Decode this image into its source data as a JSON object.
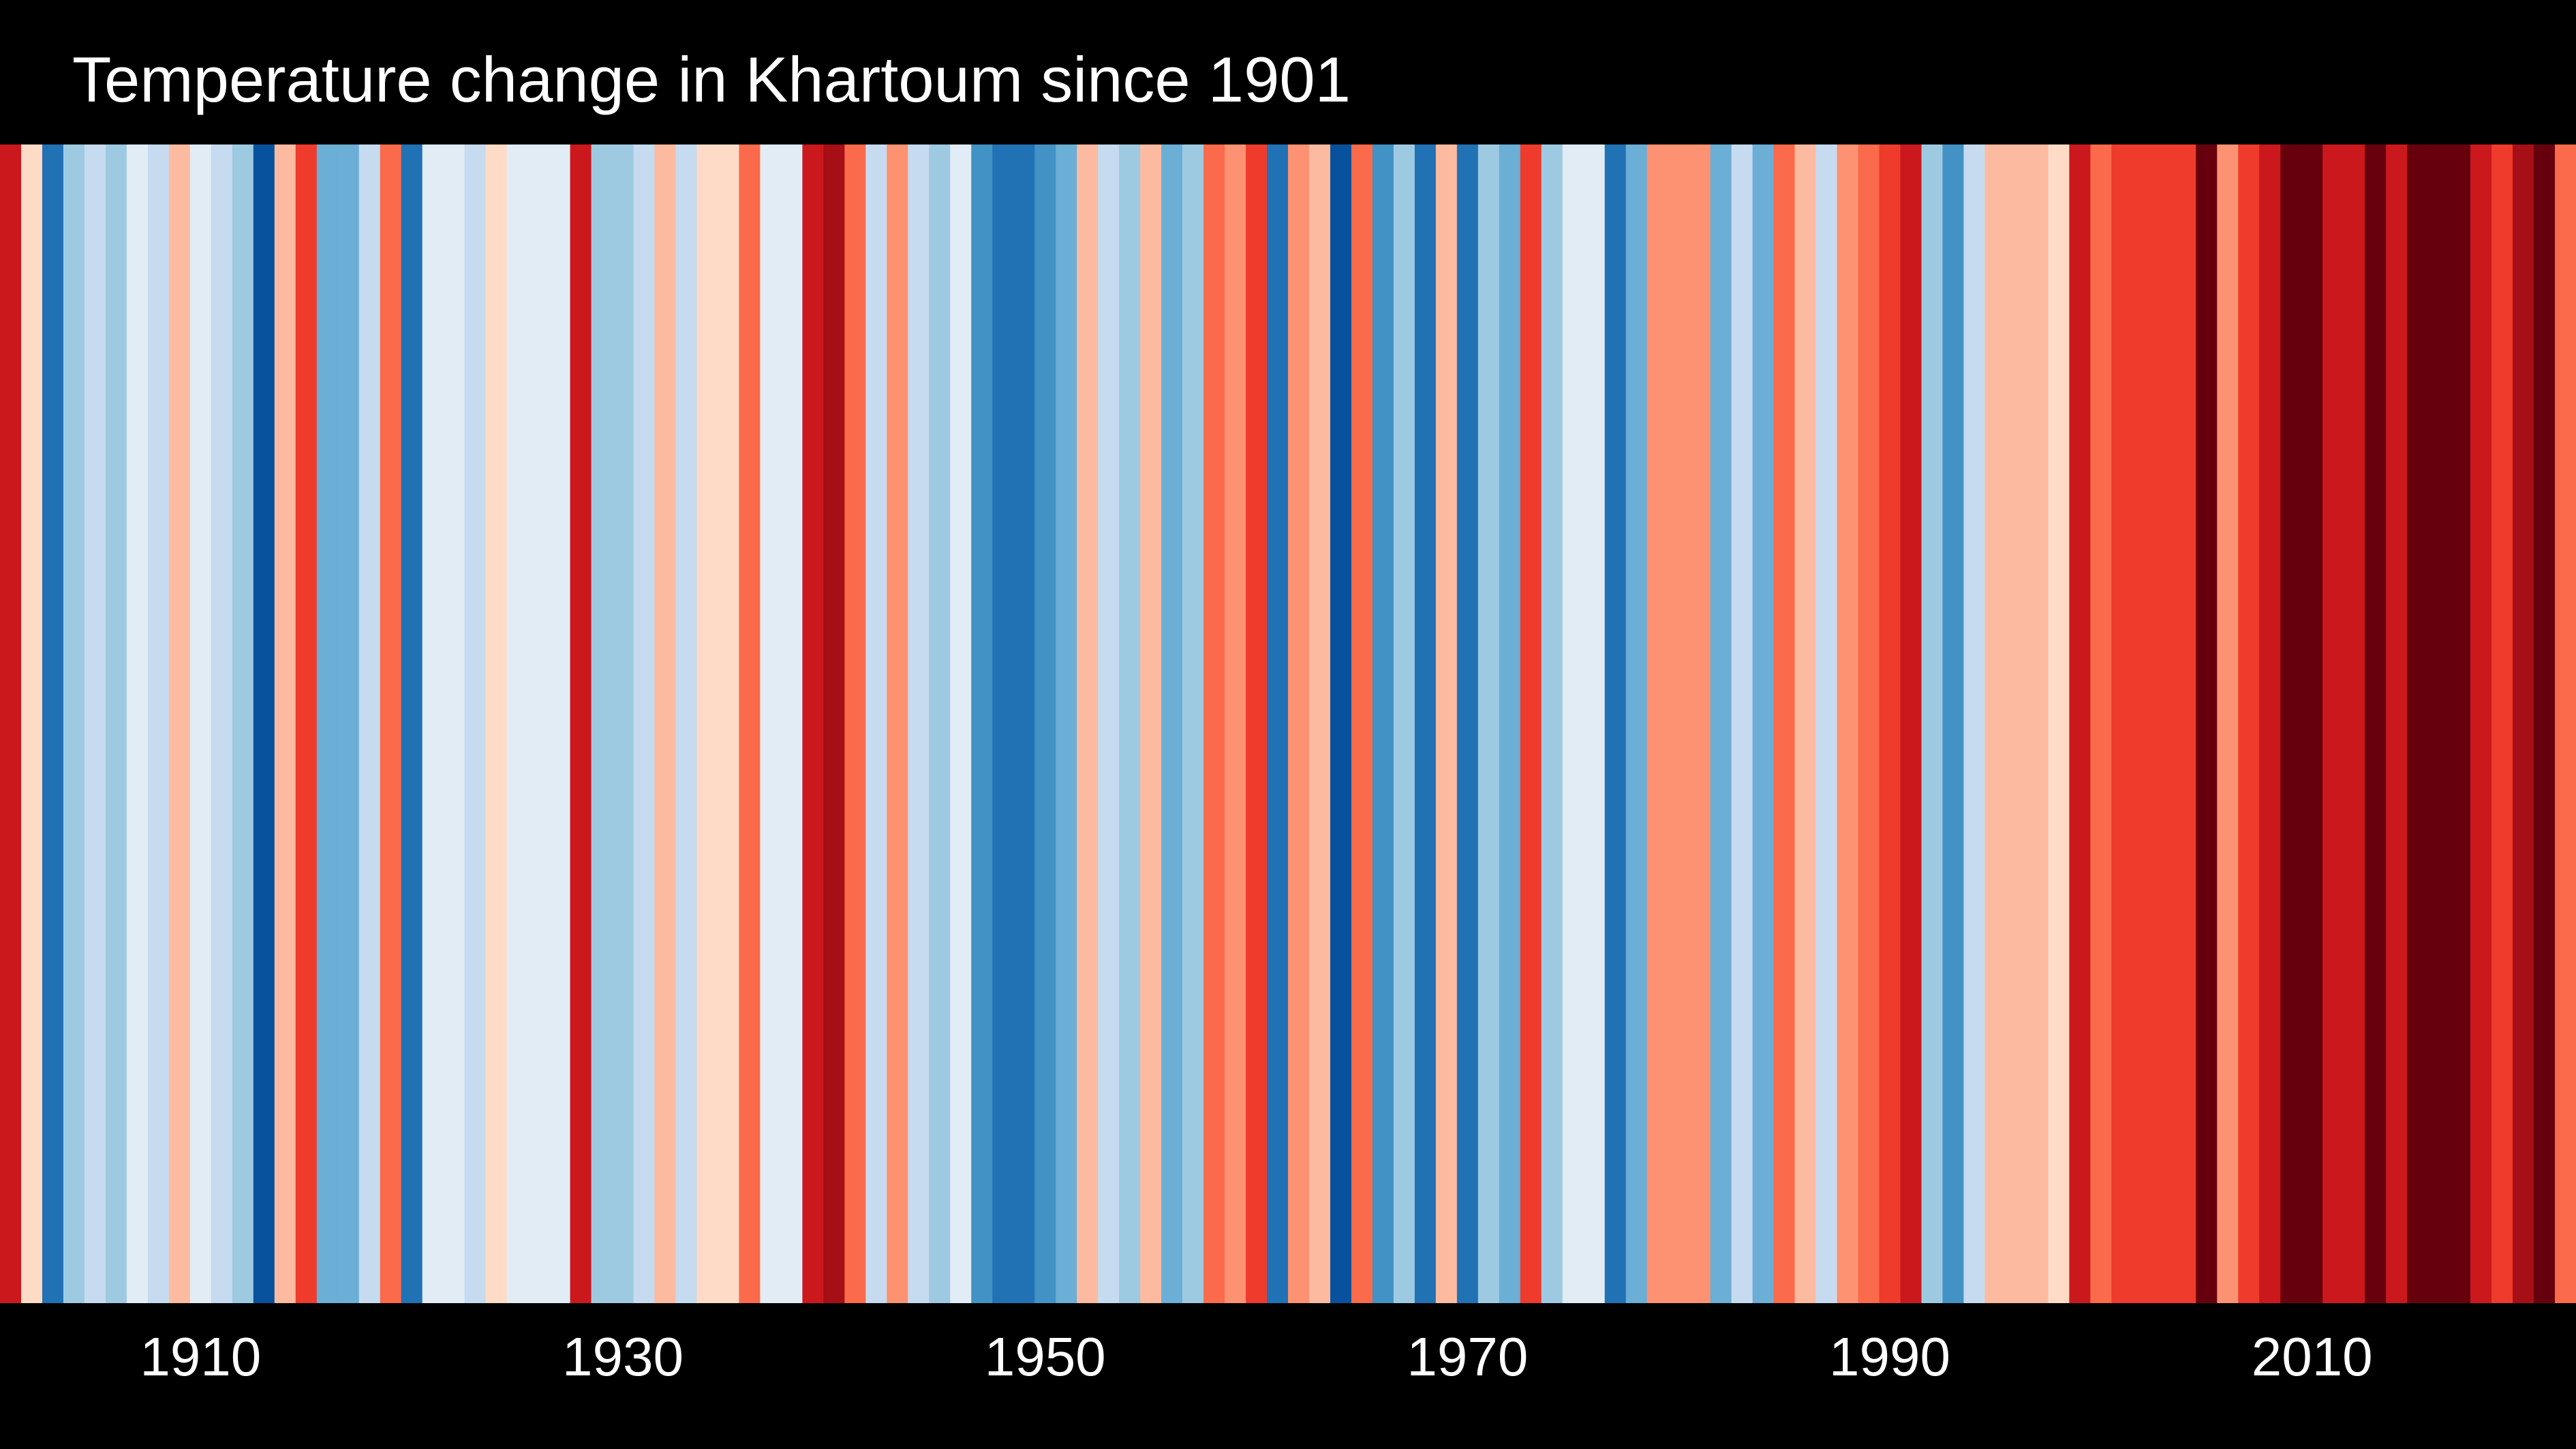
{
  "chart_data": {
    "type": "heatmap",
    "title": "Temperature change in Khartoum since 1901",
    "x": [
      1901,
      1902,
      1903,
      1904,
      1905,
      1906,
      1907,
      1908,
      1909,
      1910,
      1911,
      1912,
      1913,
      1914,
      1915,
      1916,
      1917,
      1918,
      1919,
      1920,
      1921,
      1922,
      1923,
      1924,
      1925,
      1926,
      1927,
      1928,
      1929,
      1930,
      1931,
      1932,
      1933,
      1934,
      1935,
      1936,
      1937,
      1938,
      1939,
      1940,
      1941,
      1942,
      1943,
      1944,
      1945,
      1946,
      1947,
      1948,
      1949,
      1950,
      1951,
      1952,
      1953,
      1954,
      1955,
      1956,
      1957,
      1958,
      1959,
      1960,
      1961,
      1962,
      1963,
      1964,
      1965,
      1966,
      1967,
      1968,
      1969,
      1970,
      1971,
      1972,
      1973,
      1974,
      1975,
      1976,
      1977,
      1978,
      1979,
      1980,
      1981,
      1982,
      1983,
      1984,
      1985,
      1986,
      1987,
      1988,
      1989,
      1990,
      1991,
      1992,
      1993,
      1994,
      1995,
      1996,
      1997,
      1998,
      1999,
      2000,
      2001,
      2002,
      2003,
      2004,
      2005,
      2006,
      2007,
      2008,
      2009,
      2010,
      2011,
      2012,
      2013,
      2014,
      2015,
      2016,
      2017,
      2018,
      2019,
      2020,
      2021,
      2022
    ],
    "colors": [
      "#cb181d",
      "#fddbc7",
      "#2171b5",
      "#9ecae1",
      "#c6dbef",
      "#9ecae1",
      "#e1ecf4",
      "#c6dbef",
      "#fcbba1",
      "#e1ecf4",
      "#c6dbef",
      "#9ecae1",
      "#08519c",
      "#fcbba1",
      "#ef3b2c",
      "#6baed6",
      "#6baed6",
      "#c6dbef",
      "#fb6a4a",
      "#2171b5",
      "#e1ecf4",
      "#e1ecf4",
      "#c6dbef",
      "#fddbc7",
      "#e1ecf4",
      "#e1ecf4",
      "#e1ecf4",
      "#cb181d",
      "#9ecae1",
      "#9ecae1",
      "#c6dbef",
      "#fcbba1",
      "#c6dbef",
      "#fddbc7",
      "#fddbc7",
      "#fb6a4a",
      "#e1ecf4",
      "#e1ecf4",
      "#cb181d",
      "#a50f15",
      "#fb6a4a",
      "#c6dbef",
      "#fc9272",
      "#c6dbef",
      "#9ecae1",
      "#e1ecf4",
      "#4292c6",
      "#2171b5",
      "#2171b5",
      "#4292c6",
      "#6baed6",
      "#fcbba1",
      "#c6dbef",
      "#9ecae1",
      "#fcbba1",
      "#6baed6",
      "#9ecae1",
      "#fb6a4a",
      "#fc9272",
      "#ef3b2c",
      "#2171b5",
      "#fc9272",
      "#fcbba1",
      "#08519c",
      "#fb6a4a",
      "#4292c6",
      "#9ecae1",
      "#2171b5",
      "#fcbba1",
      "#2171b5",
      "#9ecae1",
      "#6baed6",
      "#ef3b2c",
      "#9ecae1",
      "#e1ecf4",
      "#e1ecf4",
      "#2171b5",
      "#6baed6",
      "#fc9272",
      "#fc9272",
      "#fc9272",
      "#6baed6",
      "#c6dbef",
      "#6baed6",
      "#fb6a4a",
      "#fcbba1",
      "#c6dbef",
      "#fc9272",
      "#fb6a4a",
      "#ef3b2c",
      "#cb181d",
      "#9ecae1",
      "#4292c6",
      "#c6dbef",
      "#fcbba1",
      "#fcbba1",
      "#fcbba1",
      "#fddbc7",
      "#cb181d",
      "#fb6a4a",
      "#ef3b2c",
      "#ef3b2c",
      "#ef3b2c",
      "#ef3b2c",
      "#67000d",
      "#fc9272",
      "#ef3b2c",
      "#cb181d",
      "#67000d",
      "#67000d",
      "#cb181d",
      "#cb181d",
      "#67000d",
      "#cb181d",
      "#67000d",
      "#67000d",
      "#67000d",
      "#cb181d",
      "#ef3b2c",
      "#a50f15",
      "#67000d",
      "#fb6a4a"
    ],
    "tick_labels": [
      "1910",
      "1930",
      "1950",
      "1970",
      "1990",
      "2010"
    ],
    "xlim": [
      1901,
      2022
    ]
  }
}
